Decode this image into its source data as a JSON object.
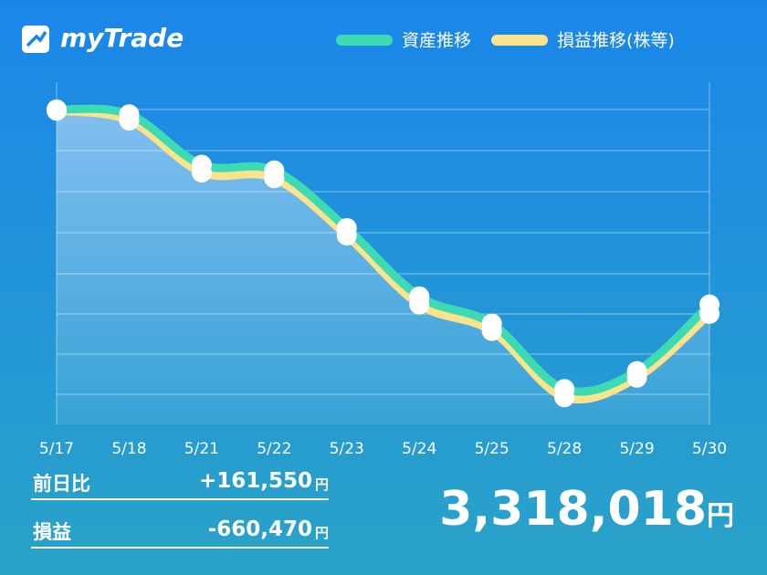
{
  "app": {
    "logo": "myTrade"
  },
  "chart_data": {
    "type": "line",
    "categories": [
      "5/17",
      "5/18",
      "5/21",
      "5/22",
      "5/23",
      "5/24",
      "5/25",
      "5/28",
      "5/29",
      "5/30"
    ],
    "series": [
      {
        "name": "資産推移",
        "color": "#3ddbb4",
        "values": [
          8.0,
          7.88,
          6.64,
          6.5,
          5.08,
          3.4,
          2.73,
          1.12,
          1.56,
          3.2
        ]
      },
      {
        "name": "損益推移(株等)",
        "color": "#fbe38c",
        "values": [
          7.97,
          7.73,
          6.45,
          6.31,
          4.9,
          3.2,
          2.55,
          0.92,
          1.4,
          2.97
        ]
      }
    ],
    "ylim": [
      0.25,
      8.65
    ]
  },
  "summary": {
    "rows": [
      {
        "label": "前日比",
        "value": "+161,550",
        "unit": "円"
      },
      {
        "label": "損益",
        "value": "-660,470",
        "unit": "円"
      }
    ],
    "total": {
      "value": "3,318,018",
      "unit": "円"
    }
  }
}
